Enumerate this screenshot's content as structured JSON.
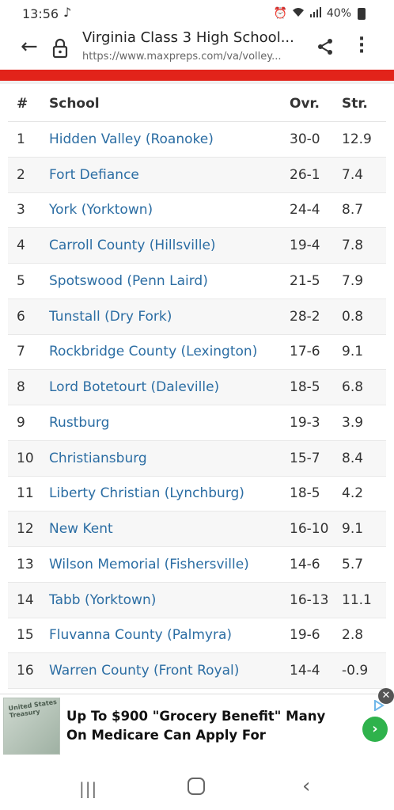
{
  "status_bar": {
    "time": "13:56",
    "battery": "40%"
  },
  "app_bar": {
    "title": "Virginia Class 3 High School...",
    "url": "https://www.maxpreps.com/va/volley..."
  },
  "table": {
    "headers": {
      "rank": "#",
      "school": "School",
      "ovr": "Ovr.",
      "str": "Str."
    },
    "rows": [
      {
        "rank": "1",
        "school": "Hidden Valley (Roanoke)",
        "ovr": "30-0",
        "str": "12.9"
      },
      {
        "rank": "2",
        "school": "Fort Defiance",
        "ovr": "26-1",
        "str": "7.4"
      },
      {
        "rank": "3",
        "school": "York (Yorktown)",
        "ovr": "24-4",
        "str": "8.7"
      },
      {
        "rank": "4",
        "school": "Carroll County (Hillsville)",
        "ovr": "19-4",
        "str": "7.8"
      },
      {
        "rank": "5",
        "school": "Spotswood (Penn Laird)",
        "ovr": "21-5",
        "str": "7.9"
      },
      {
        "rank": "6",
        "school": "Tunstall (Dry Fork)",
        "ovr": "28-2",
        "str": "0.8"
      },
      {
        "rank": "7",
        "school": "Rockbridge County (Lexington)",
        "ovr": "17-6",
        "str": "9.1"
      },
      {
        "rank": "8",
        "school": "Lord Botetourt (Daleville)",
        "ovr": "18-5",
        "str": "6.8"
      },
      {
        "rank": "9",
        "school": "Rustburg",
        "ovr": "19-3",
        "str": "3.9"
      },
      {
        "rank": "10",
        "school": "Christiansburg",
        "ovr": "15-7",
        "str": "8.4"
      },
      {
        "rank": "11",
        "school": "Liberty Christian (Lynchburg)",
        "ovr": "18-5",
        "str": "4.2"
      },
      {
        "rank": "12",
        "school": "New Kent",
        "ovr": "16-10",
        "str": "9.1"
      },
      {
        "rank": "13",
        "school": "Wilson Memorial (Fishersville)",
        "ovr": "14-6",
        "str": "5.7"
      },
      {
        "rank": "14",
        "school": "Tabb (Yorktown)",
        "ovr": "16-13",
        "str": "11.1"
      },
      {
        "rank": "15",
        "school": "Fluvanna County (Palmyra)",
        "ovr": "19-6",
        "str": "2.8"
      },
      {
        "rank": "16",
        "school": "Warren County (Front Royal)",
        "ovr": "14-4",
        "str": "-0.9"
      }
    ]
  },
  "ad": {
    "text": "Up To $900 \"Grocery Benefit\" Many On Medicare Can Apply For",
    "thumb_text": "United States Treasury"
  },
  "colors": {
    "accent_red": "#e2231a",
    "link_blue": "#2b6da3",
    "ad_green": "#2fb24c"
  }
}
